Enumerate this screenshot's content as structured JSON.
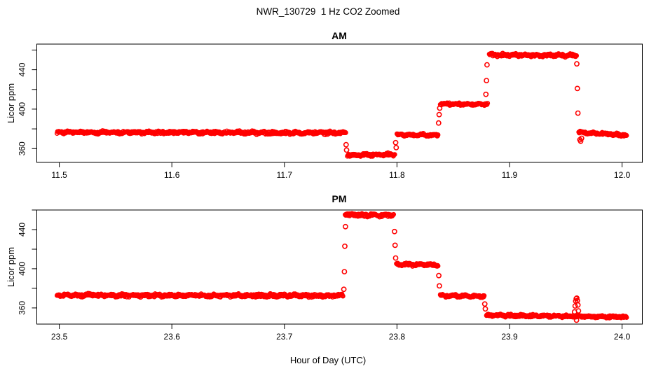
{
  "figure": {
    "title": "NWR_130729  1 Hz CO2 Zoomed",
    "xlabel": "Hour of Day (UTC)",
    "marker_color": "#FF0000",
    "axis_color": "#000000",
    "background": "#FFFFFF"
  },
  "chart_data": [
    {
      "type": "scatter",
      "title": "AM",
      "ylabel": "Licor ppm",
      "marker": "open-circle",
      "color": "#FF0000",
      "grid": false,
      "legend": "none",
      "xlim": [
        11.48,
        12.018
      ],
      "ylim": [
        346,
        466
      ],
      "xticks": [
        11.5,
        11.6,
        11.7,
        11.8,
        11.9,
        12.0
      ],
      "xtick_labels": [
        "11.5",
        "11.6",
        "11.7",
        "11.8",
        "11.9",
        "12.0"
      ],
      "yticks_major": [
        360,
        400,
        440
      ],
      "ytick_labels": [
        "360",
        "400",
        "440"
      ],
      "yticks_minor": [
        380,
        420,
        460
      ],
      "segments": [
        {
          "x_start": 11.498,
          "x_end": 11.7545,
          "y_start": 376.5,
          "y_end": 376.0,
          "noise_sd": 1.2
        },
        {
          "x_start": 11.756,
          "x_end": 11.798,
          "y_start": 353.5,
          "y_end": 354.0,
          "noise_sd": 1.0
        },
        {
          "x_start": 11.8,
          "x_end": 11.8365,
          "y_start": 374.0,
          "y_end": 373.5,
          "noise_sd": 1.0
        },
        {
          "x_start": 11.8385,
          "x_end": 11.8805,
          "y_start": 405.5,
          "y_end": 405.0,
          "noise_sd": 1.0
        },
        {
          "x_start": 11.882,
          "x_end": 11.9595,
          "y_start": 455.0,
          "y_end": 454.5,
          "noise_sd": 1.2
        },
        {
          "x_start": 11.9615,
          "x_end": 12.004,
          "y_start": 376.5,
          "y_end": 373.5,
          "noise_sd": 1.1
        }
      ],
      "transition_points": [
        [
          11.7548,
          364.0
        ],
        [
          11.7552,
          358.5
        ],
        [
          11.7988,
          366.0
        ],
        [
          11.7993,
          361.0
        ],
        [
          11.837,
          386.0
        ],
        [
          11.8375,
          394.5
        ],
        [
          11.838,
          401.0
        ],
        [
          11.879,
          415.0
        ],
        [
          11.8795,
          429.0
        ],
        [
          11.88,
          445.0
        ],
        [
          11.9598,
          446.0
        ],
        [
          11.9603,
          421.0
        ],
        [
          11.9608,
          396.0
        ],
        [
          11.9625,
          369.0
        ],
        [
          11.9632,
          367.5
        ],
        [
          11.964,
          370.5
        ]
      ]
    },
    {
      "type": "scatter",
      "title": "PM",
      "ylabel": "Licor ppm",
      "marker": "open-circle",
      "color": "#FF0000",
      "grid": false,
      "legend": "none",
      "xlim": [
        23.48,
        24.018
      ],
      "ylim": [
        343.5,
        460
      ],
      "xticks": [
        23.5,
        23.6,
        23.7,
        23.8,
        23.9,
        24.0
      ],
      "xtick_labels": [
        "23.5",
        "23.6",
        "23.7",
        "23.8",
        "23.9",
        "24.0"
      ],
      "yticks_major": [
        360,
        400,
        440
      ],
      "ytick_labels": [
        "360",
        "400",
        "440"
      ],
      "yticks_minor": [
        380,
        420,
        460
      ],
      "segments": [
        {
          "x_start": 23.498,
          "x_end": 23.752,
          "y_start": 373.0,
          "y_end": 372.5,
          "noise_sd": 1.2
        },
        {
          "x_start": 23.754,
          "x_end": 23.797,
          "y_start": 455.0,
          "y_end": 454.5,
          "noise_sd": 1.2
        },
        {
          "x_start": 23.7995,
          "x_end": 23.8365,
          "y_start": 404.5,
          "y_end": 404.0,
          "noise_sd": 1.0
        },
        {
          "x_start": 23.8385,
          "x_end": 23.8775,
          "y_start": 372.5,
          "y_end": 372.0,
          "noise_sd": 1.0
        },
        {
          "x_start": 23.8795,
          "x_end": 24.004,
          "y_start": 352.5,
          "y_end": 350.8,
          "noise_sd": 1.0
        }
      ],
      "transition_points": [
        [
          23.7528,
          379.0
        ],
        [
          23.7533,
          397.0
        ],
        [
          23.7537,
          423.0
        ],
        [
          23.7542,
          443.0
        ],
        [
          23.7978,
          438.0
        ],
        [
          23.7983,
          424.0
        ],
        [
          23.7988,
          411.0
        ],
        [
          23.8372,
          393.0
        ],
        [
          23.8377,
          382.5
        ],
        [
          23.878,
          364.0
        ],
        [
          23.8785,
          359.0
        ],
        [
          23.9578,
          356.0
        ],
        [
          23.9583,
          362.0
        ],
        [
          23.9588,
          367.0
        ],
        [
          23.9593,
          369.5
        ],
        [
          23.9598,
          370.0
        ],
        [
          23.9603,
          367.5
        ],
        [
          23.9608,
          363.0
        ],
        [
          23.9613,
          357.0
        ],
        [
          23.9595,
          347.5
        ]
      ]
    }
  ]
}
